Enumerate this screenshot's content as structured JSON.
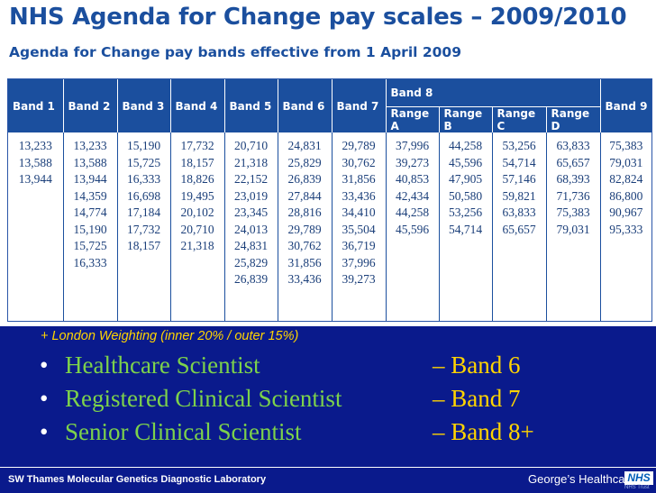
{
  "title": "NHS Agenda for Change pay scales – 2009/2010",
  "subtitle": "Agenda for Change pay bands effective from 1 April 2009",
  "table": {
    "bands": [
      "Band 1",
      "Band 2",
      "Band 3",
      "Band 4",
      "Band 5",
      "Band 6",
      "Band 7",
      "Band 8",
      "Band 9"
    ],
    "ranges": [
      "Range A",
      "Range B",
      "Range C",
      "Range D"
    ],
    "columns": [
      [
        "13,233",
        "13,588",
        "13,944"
      ],
      [
        "13,233",
        "13,588",
        "13,944",
        "14,359",
        "14,774",
        "15,190",
        "15,725",
        "16,333"
      ],
      [
        "15,190",
        "15,725",
        "16,333",
        "16,698",
        "17,184",
        "17,732",
        "18,157"
      ],
      [
        "17,732",
        "18,157",
        "18,826",
        "19,495",
        "20,102",
        "20,710",
        "21,318"
      ],
      [
        "20,710",
        "21,318",
        "22,152",
        "23,019",
        "23,345",
        "24,013",
        "24,831",
        "25,829",
        "26,839"
      ],
      [
        "24,831",
        "25,829",
        "26,839",
        "27,844",
        "28,816",
        "29,789",
        "30,762",
        "31,856",
        "33,436"
      ],
      [
        "29,789",
        "30,762",
        "31,856",
        "33,436",
        "34,410",
        "35,504",
        "36,719",
        "37,996",
        "39,273"
      ],
      [
        "37,996",
        "39,273",
        "40,853",
        "42,434",
        "44,258",
        "45,596"
      ],
      [
        "44,258",
        "45,596",
        "47,905",
        "50,580",
        "53,256",
        "54,714"
      ],
      [
        "53,256",
        "54,714",
        "57,146",
        "59,821",
        "63,833",
        "65,657"
      ],
      [
        "63,833",
        "65,657",
        "68,393",
        "71,736",
        "75,383",
        "79,031"
      ],
      [
        "75,383",
        "79,031",
        "82,824",
        "86,800",
        "90,967",
        "95,333"
      ]
    ]
  },
  "note": "+ London Weighting (inner 20% / outer 15%)",
  "roles": [
    {
      "role": "Healthcare Scientist",
      "band": "– Band 6"
    },
    {
      "role": "Registered Clinical Scientist",
      "band": "– Band 7"
    },
    {
      "role": "Senior Clinical Scientist",
      "band": "– Band 8+"
    }
  ],
  "footer": {
    "left": "SW Thames Molecular Genetics Diagnostic Laboratory",
    "logo_text": "George’s Healthcare",
    "logo_mark": "NHS",
    "logo_sub": "NHS Trust"
  },
  "colors": {
    "background": "#0a1a8c",
    "header": "#1b4f9e",
    "highlight": "#ffd400",
    "role": "#7dd24b"
  }
}
